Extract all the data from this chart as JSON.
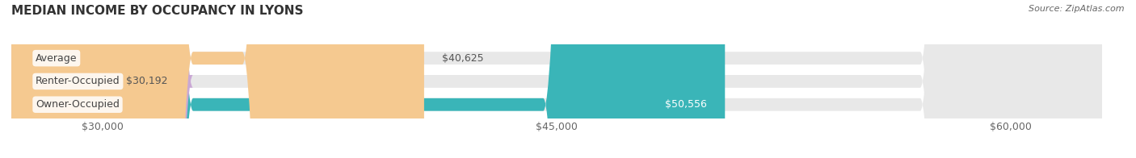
{
  "title": "MEDIAN INCOME BY OCCUPANCY IN LYONS",
  "source": "Source: ZipAtlas.com",
  "categories": [
    "Owner-Occupied",
    "Renter-Occupied",
    "Average"
  ],
  "values": [
    50556,
    30192,
    40625
  ],
  "bar_colors": [
    "#3ab5b8",
    "#c9a8d4",
    "#f5c990"
  ],
  "bar_bg_color": "#e8e8e8",
  "value_labels": [
    "$50,556",
    "$30,192",
    "$40,625"
  ],
  "label_inside": [
    true,
    false,
    false
  ],
  "x_min": 27000,
  "x_max": 63000,
  "x_ticks": [
    30000,
    45000,
    60000
  ],
  "x_tick_labels": [
    "$30,000",
    "$45,000",
    "$60,000"
  ],
  "title_fontsize": 11,
  "label_fontsize": 9,
  "bar_label_fontsize": 9,
  "source_fontsize": 8,
  "background_color": "#ffffff",
  "bar_height": 0.55,
  "title_color": "#333333",
  "tick_label_color": "#666666",
  "source_color": "#666666",
  "category_label_color": "#444444",
  "grid_color": "#cccccc"
}
